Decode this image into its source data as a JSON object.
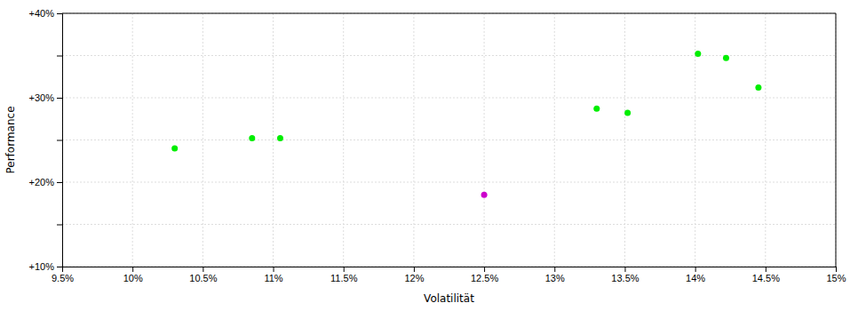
{
  "chart_data": {
    "type": "scatter",
    "xlabel": "Volatilität",
    "ylabel": "Performance",
    "series": [
      {
        "color": "#00ee00",
        "x": [
          10.3,
          10.85,
          11.05,
          13.3,
          13.52,
          14.02,
          14.22,
          14.45
        ],
        "values": [
          24.0,
          25.2,
          25.2,
          28.7,
          28.2,
          35.2,
          34.7,
          31.2
        ]
      },
      {
        "color": "#cc00cc",
        "x": [
          12.5
        ],
        "values": [
          18.5
        ]
      }
    ],
    "xlim": [
      9.5,
      15.0
    ],
    "ylim": [
      10.0,
      40.0
    ],
    "xticks": [
      {
        "value": 9.5,
        "label": "9.5%"
      },
      {
        "value": 10.0,
        "label": "10%"
      },
      {
        "value": 10.5,
        "label": "10.5%"
      },
      {
        "value": 11.0,
        "label": "11%"
      },
      {
        "value": 11.5,
        "label": "11.5%"
      },
      {
        "value": 12.0,
        "label": "12%"
      },
      {
        "value": 12.5,
        "label": "12.5%"
      },
      {
        "value": 13.0,
        "label": "13%"
      },
      {
        "value": 13.5,
        "label": "13.5%"
      },
      {
        "value": 14.0,
        "label": "14%"
      },
      {
        "value": 14.5,
        "label": "14.5%"
      },
      {
        "value": 15.0,
        "label": "15%"
      }
    ],
    "yticks": [
      {
        "value": 10,
        "label": "+10%"
      },
      {
        "value": 15,
        "label": null
      },
      {
        "value": 20,
        "label": "+20%"
      },
      {
        "value": 25,
        "label": null
      },
      {
        "value": 30,
        "label": "+30%"
      },
      {
        "value": 35,
        "label": null
      },
      {
        "value": 40,
        "label": "+40%"
      }
    ],
    "grid": true
  }
}
